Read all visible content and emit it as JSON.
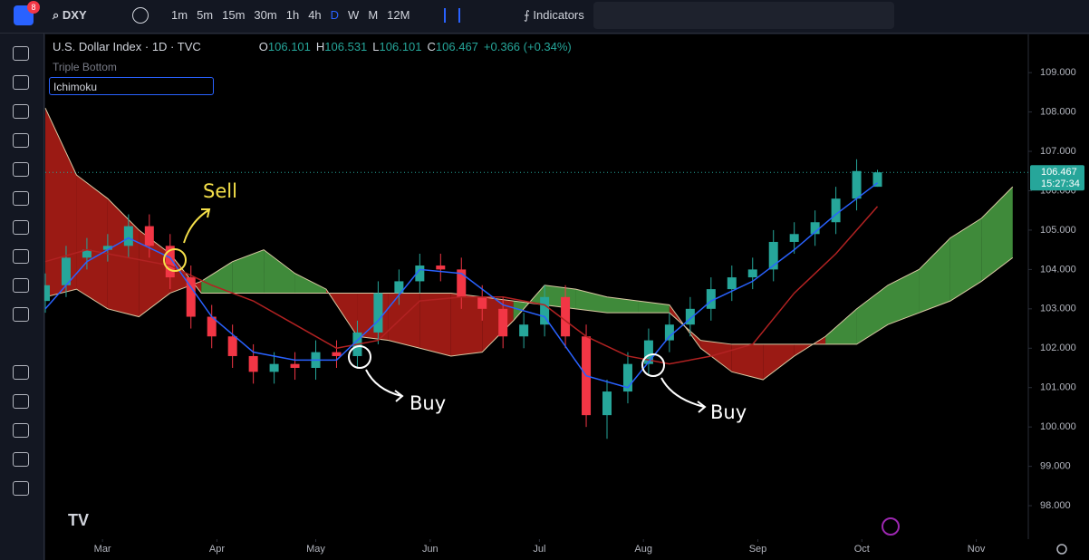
{
  "toolbar": {
    "badge": "8",
    "symbol": "DXY",
    "intervals": [
      "1m",
      "5m",
      "15m",
      "30m",
      "1h",
      "4h",
      "D",
      "W",
      "M",
      "12M"
    ],
    "indicators": "Indicators"
  },
  "legend": {
    "title": "U.S. Dollar Index · 1D · TVC",
    "open_label": "O",
    "open": "106.101",
    "high_label": "H",
    "high": "106.531",
    "low_label": "L",
    "low": "106.101",
    "close_label": "C",
    "close": "106.467",
    "change": "+0.366 (+0.34%)"
  },
  "studies": [
    "Triple Bottom",
    "Ichimoku"
  ],
  "annotations": [
    "Sell",
    "Buy",
    "Buy"
  ],
  "chart_data": {
    "type": "candlestick",
    "x": [
      0,
      4,
      8,
      12,
      16,
      20,
      24,
      28,
      32,
      36,
      40,
      44,
      48,
      52,
      56,
      60,
      64,
      68,
      72,
      76,
      80,
      84,
      88,
      92,
      96,
      100,
      104,
      108,
      112,
      116,
      120,
      124,
      128,
      132,
      136,
      140,
      144,
      148,
      152,
      156,
      160
    ],
    "open": [
      103.2,
      103.6,
      104.3,
      104.5,
      104.6,
      105.1,
      104.6,
      103.8,
      102.8,
      102.3,
      101.8,
      101.4,
      101.6,
      101.5,
      101.9,
      101.8,
      102.4,
      103.4,
      103.7,
      104.1,
      104.0,
      103.3,
      103.0,
      102.3,
      102.6,
      103.3,
      102.3,
      100.3,
      100.9,
      101.6,
      102.2,
      102.6,
      103.0,
      103.5,
      103.8,
      104.0,
      104.7,
      104.9,
      105.2,
      105.8,
      106.101
    ],
    "high": [
      103.9,
      104.6,
      104.8,
      104.9,
      105.4,
      105.4,
      104.9,
      104.1,
      103.1,
      102.6,
      102.1,
      101.9,
      101.9,
      102.2,
      102.2,
      102.7,
      103.7,
      104.0,
      104.4,
      104.4,
      104.3,
      103.6,
      103.3,
      102.9,
      103.6,
      103.6,
      102.6,
      101.2,
      101.9,
      102.5,
      102.9,
      103.3,
      103.8,
      104.1,
      104.3,
      105.0,
      105.2,
      105.5,
      106.1,
      106.8,
      106.531
    ],
    "low": [
      102.9,
      103.3,
      104.0,
      104.2,
      104.3,
      104.3,
      103.5,
      102.5,
      102.0,
      101.5,
      101.1,
      101.1,
      101.2,
      101.2,
      101.5,
      101.5,
      102.1,
      103.1,
      103.4,
      103.7,
      103.0,
      102.7,
      102.0,
      102.0,
      102.3,
      102.0,
      100.0,
      99.7,
      100.6,
      101.3,
      101.9,
      102.3,
      102.7,
      103.2,
      103.5,
      103.7,
      104.4,
      104.6,
      104.9,
      105.5,
      106.101
    ],
    "close": [
      103.6,
      104.3,
      104.5,
      104.6,
      105.1,
      104.6,
      103.8,
      102.8,
      102.3,
      101.8,
      101.4,
      101.6,
      101.5,
      101.9,
      101.8,
      102.4,
      103.4,
      103.7,
      104.1,
      104.0,
      103.3,
      103.0,
      102.3,
      102.6,
      103.3,
      102.3,
      100.3,
      100.9,
      101.6,
      102.2,
      102.6,
      103.0,
      103.5,
      103.8,
      104.0,
      104.7,
      104.9,
      105.2,
      105.8,
      106.5,
      106.467
    ],
    "up_color": "#26a69a",
    "down_color": "#f23645",
    "ichimoku": {
      "line_x": [
        0,
        8,
        16,
        24,
        32,
        40,
        48,
        56,
        64,
        72,
        80,
        88,
        96,
        104,
        112,
        120,
        128,
        136,
        144,
        152,
        160
      ],
      "conversion": [
        103.0,
        104.2,
        104.8,
        104.3,
        102.8,
        101.9,
        101.7,
        101.7,
        102.7,
        104.0,
        103.9,
        103.1,
        102.8,
        101.3,
        101.0,
        102.3,
        103.2,
        103.7,
        104.5,
        105.4,
        106.2
      ],
      "base": [
        104.2,
        104.5,
        104.3,
        104.1,
        103.6,
        103.2,
        102.6,
        102.0,
        102.2,
        103.2,
        103.3,
        103.3,
        103.1,
        102.3,
        101.8,
        101.6,
        101.8,
        102.1,
        103.4,
        104.4,
        105.6
      ],
      "conversion_color": "#2962ff",
      "base_color": "#b22222",
      "cloud_x": [
        0,
        6,
        12,
        18,
        24,
        30,
        36,
        42,
        48,
        54,
        60,
        66,
        72,
        78,
        84,
        90,
        96,
        102,
        108,
        114,
        120,
        126,
        132,
        138,
        144,
        150,
        156,
        162,
        168,
        174,
        180,
        186
      ],
      "span_a": [
        103.3,
        103.5,
        103.0,
        102.8,
        103.4,
        103.7,
        104.2,
        104.5,
        103.9,
        103.5,
        102.3,
        102.2,
        102.0,
        101.8,
        101.9,
        102.7,
        103.6,
        103.5,
        103.3,
        103.2,
        103.1,
        102.0,
        101.4,
        101.2,
        101.8,
        102.3,
        103.0,
        103.6,
        104.0,
        104.8,
        105.3,
        106.1
      ],
      "span_b": [
        108.1,
        106.4,
        105.8,
        105.0,
        104.4,
        103.4,
        103.4,
        103.4,
        103.4,
        103.4,
        103.4,
        103.4,
        103.4,
        103.4,
        103.3,
        103.2,
        103.1,
        103.0,
        102.9,
        102.9,
        102.9,
        102.2,
        102.1,
        102.1,
        102.1,
        102.1,
        102.1,
        102.6,
        102.9,
        103.2,
        103.7,
        104.3
      ],
      "cloud_up_color": "#3f8a3a",
      "cloud_down_color": "#9b1a14"
    },
    "last_price": 106.467,
    "countdown": "15:27:34",
    "xlim": [
      0,
      189
    ],
    "xticks": [
      {
        "value": 11,
        "label": "Mar"
      },
      {
        "value": 33,
        "label": "Apr"
      },
      {
        "value": 52,
        "label": "May"
      },
      {
        "value": 74,
        "label": "Jun"
      },
      {
        "value": 95,
        "label": "Jul"
      },
      {
        "value": 115,
        "label": "Aug"
      },
      {
        "value": 137,
        "label": "Sep"
      },
      {
        "value": 157,
        "label": "Oct"
      },
      {
        "value": 179,
        "label": "Nov"
      }
    ],
    "ylim": [
      97.15,
      109.97
    ],
    "yticks": [
      {
        "value": 98,
        "label": "98.000"
      },
      {
        "value": 99,
        "label": "99.000"
      },
      {
        "value": 100,
        "label": "100.000"
      },
      {
        "value": 101,
        "label": "101.000"
      },
      {
        "value": 102,
        "label": "102.000"
      },
      {
        "value": 103,
        "label": "103.000"
      },
      {
        "value": 104,
        "label": "104.000"
      },
      {
        "value": 105,
        "label": "105.000"
      },
      {
        "value": 106,
        "label": "106.000"
      },
      {
        "value": 107,
        "label": "107.000"
      },
      {
        "value": 108,
        "label": "108.000"
      },
      {
        "value": 109,
        "label": "109.000"
      }
    ],
    "grid": false
  }
}
